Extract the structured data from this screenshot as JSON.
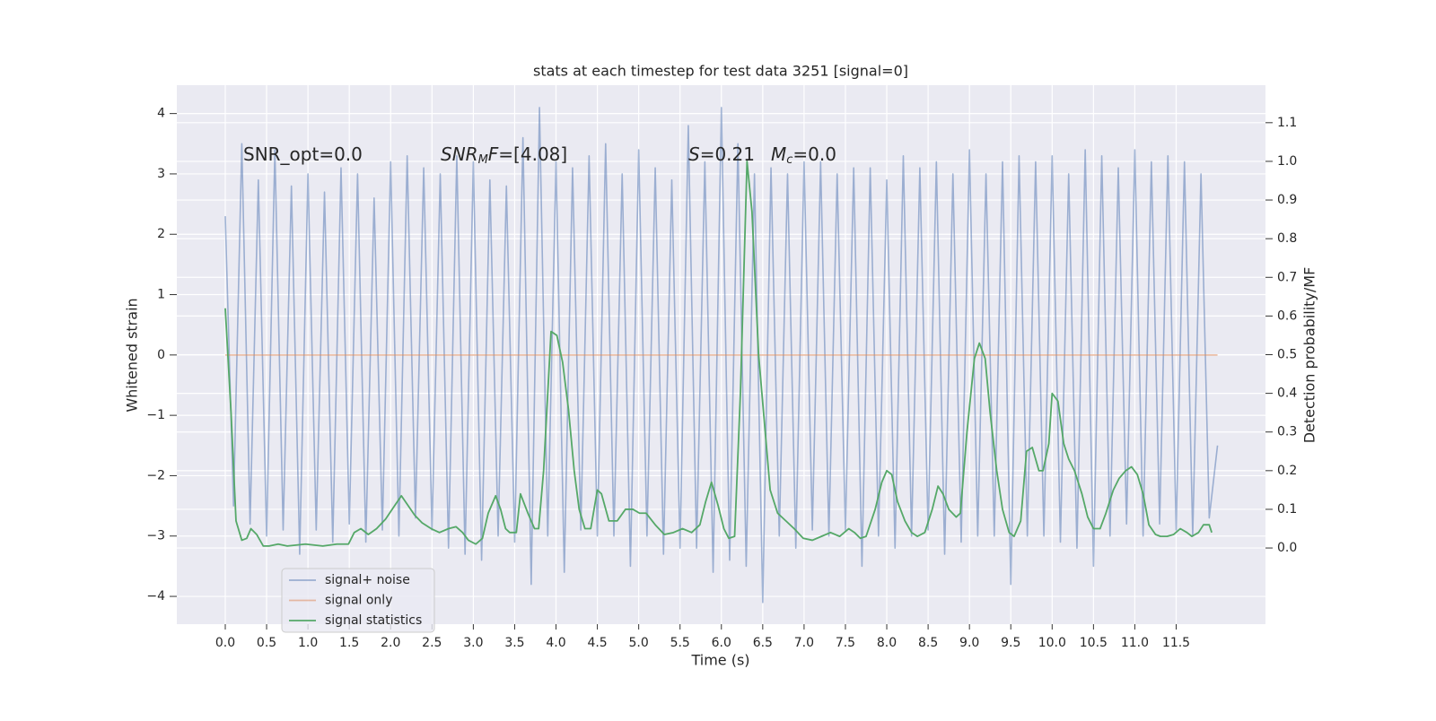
{
  "chart_data": {
    "type": "line",
    "title": "stats at each timestep for test data 3251 [signal=0]",
    "xlabel": "Time (s)",
    "ylabel": "Whitened strain",
    "y2label": "Detection probability/MF",
    "xlim": [
      -0.586,
      12.58
    ],
    "ylim": [
      -4.46,
      4.47
    ],
    "y2lim": [
      -0.197,
      1.197
    ],
    "xticks": [
      {
        "value": 0,
        "label": "0.0"
      },
      {
        "value": 0.5,
        "label": "0.5"
      },
      {
        "value": 1,
        "label": "1.0"
      },
      {
        "value": 1.5,
        "label": "1.5"
      },
      {
        "value": 2,
        "label": "2.0"
      },
      {
        "value": 2.5,
        "label": "2.5"
      },
      {
        "value": 3,
        "label": "3.0"
      },
      {
        "value": 3.5,
        "label": "3.5"
      },
      {
        "value": 4,
        "label": "4.0"
      },
      {
        "value": 4.5,
        "label": "4.5"
      },
      {
        "value": 5,
        "label": "5.0"
      },
      {
        "value": 5.5,
        "label": "5.5"
      },
      {
        "value": 6,
        "label": "6.0"
      },
      {
        "value": 6.5,
        "label": "6.5"
      },
      {
        "value": 7,
        "label": "7.0"
      },
      {
        "value": 7.5,
        "label": "7.5"
      },
      {
        "value": 8,
        "label": "8.0"
      },
      {
        "value": 8.5,
        "label": "8.5"
      },
      {
        "value": 9,
        "label": "9.0"
      },
      {
        "value": 9.5,
        "label": "9.5"
      },
      {
        "value": 10,
        "label": "10.0"
      },
      {
        "value": 10.5,
        "label": "10.5"
      },
      {
        "value": 11,
        "label": "11.0"
      },
      {
        "value": 11.5,
        "label": "11.5"
      }
    ],
    "yticks": [
      {
        "value": -4,
        "label": "−4"
      },
      {
        "value": -3,
        "label": "−3"
      },
      {
        "value": -2,
        "label": "−2"
      },
      {
        "value": -1,
        "label": "−1"
      },
      0,
      1,
      2,
      3,
      4
    ],
    "y2ticks": [
      {
        "value": 0,
        "label": "0.0"
      },
      {
        "value": 0.1,
        "label": "0.1"
      },
      {
        "value": 0.2,
        "label": "0.2"
      },
      {
        "value": 0.3,
        "label": "0.3"
      },
      {
        "value": 0.4,
        "label": "0.4"
      },
      {
        "value": 0.5,
        "label": "0.5"
      },
      {
        "value": 0.6,
        "label": "0.6"
      },
      {
        "value": 0.7,
        "label": "0.7"
      },
      {
        "value": 0.8,
        "label": "0.8"
      },
      {
        "value": 0.9,
        "label": "0.9"
      },
      {
        "value": 1,
        "label": "1.0"
      },
      {
        "value": 1.1,
        "label": "1.1"
      }
    ],
    "grid": true,
    "legend": "lower left",
    "annotations": [
      [
        {
          "text": "SNR_opt=0.0"
        }
      ],
      [
        {
          "text": "SNR",
          "math": true
        },
        {
          "text": "M",
          "math": true,
          "sub": true
        },
        {
          "text": "F",
          "math": true
        },
        {
          "text": "=[4.08]"
        }
      ],
      [
        {
          "text": "S",
          "math": true
        },
        {
          "text": "=0.21"
        }
      ],
      [
        {
          "text": "M",
          "math": true
        },
        {
          "text": "c",
          "math": true,
          "sub": true
        },
        {
          "text": "=0.0"
        }
      ]
    ],
    "series": [
      {
        "name": "signal+ noise",
        "color": "#4c72b0",
        "opacity": 0.5,
        "x": [
          0,
          0.1,
          0.2,
          0.3,
          0.4,
          0.5,
          0.6,
          0.7,
          0.8,
          0.9,
          1,
          1.1,
          1.2,
          1.3,
          1.4,
          1.5,
          1.6,
          1.7,
          1.8,
          1.9,
          2,
          2.1,
          2.2,
          2.3,
          2.4,
          2.5,
          2.6,
          2.7,
          2.8,
          2.9,
          3,
          3.1,
          3.2,
          3.3,
          3.4,
          3.5,
          3.6,
          3.7,
          3.8,
          3.9,
          4,
          4.1,
          4.2,
          4.3,
          4.4,
          4.5,
          4.6,
          4.7,
          4.8,
          4.9,
          5,
          5.1,
          5.2,
          5.3,
          5.4,
          5.5,
          5.6,
          5.7,
          5.8,
          5.9,
          6,
          6.1,
          6.2,
          6.3,
          6.4,
          6.5,
          6.6,
          6.7,
          6.8,
          6.9,
          7,
          7.1,
          7.2,
          7.3,
          7.4,
          7.5,
          7.6,
          7.7,
          7.8,
          7.9,
          8,
          8.1,
          8.2,
          8.3,
          8.4,
          8.5,
          8.6,
          8.7,
          8.8,
          8.9,
          9,
          9.1,
          9.2,
          9.3,
          9.4,
          9.5,
          9.6,
          9.7,
          9.8,
          9.9,
          10,
          10.1,
          10.2,
          10.3,
          10.4,
          10.5,
          10.6,
          10.7,
          10.8,
          10.9,
          11,
          11.1,
          11.2,
          11.3,
          11.4,
          11.5,
          11.6,
          11.7,
          11.8,
          11.9,
          12
        ],
        "values": [
          2.3,
          -2.5,
          3.5,
          -2.8,
          2.9,
          -3.0,
          3.4,
          -2.9,
          2.8,
          -3.3,
          3.0,
          -2.9,
          2.7,
          -3.1,
          3.1,
          -2.8,
          3.0,
          -3.1,
          2.6,
          -2.9,
          3.2,
          -3.0,
          3.3,
          -2.7,
          3.1,
          -2.9,
          3.0,
          -3.2,
          3.3,
          -3.3,
          3.2,
          -3.4,
          2.9,
          -3.0,
          2.8,
          -3.1,
          3.6,
          -3.8,
          4.1,
          -3.0,
          3.2,
          -3.6,
          3.1,
          -2.9,
          3.3,
          -3.0,
          3.5,
          -3.0,
          3.0,
          -3.5,
          3.4,
          -3.0,
          3.1,
          -3.3,
          2.9,
          -3.2,
          3.8,
          -3.2,
          3.2,
          -3.6,
          4.1,
          -3.4,
          3.5,
          -3.5,
          3.0,
          -4.1,
          3.1,
          -3.0,
          3.0,
          -3.2,
          3.2,
          -2.9,
          3.2,
          -3.0,
          3.0,
          -2.9,
          3.1,
          -3.5,
          3.1,
          -3.0,
          2.9,
          -3.2,
          3.3,
          -3.0,
          3.1,
          -2.9,
          3.2,
          -3.3,
          3.0,
          -3.1,
          3.4,
          -3.0,
          3.0,
          -3.0,
          3.2,
          -3.8,
          3.3,
          -3.0,
          3.2,
          -3.0,
          3.3,
          -3.1,
          3.0,
          -3.2,
          3.4,
          -3.5,
          3.3,
          -3.0,
          3.1,
          -2.8,
          3.4,
          -3.0,
          3.2,
          -2.8,
          3.3,
          -2.9,
          3.2,
          -3.0,
          3.0,
          -2.7,
          -1.5
        ]
      },
      {
        "name": "signal only",
        "color": "#dd8452",
        "opacity": 0.5,
        "x": [
          0,
          12
        ],
        "values": [
          0,
          0
        ]
      },
      {
        "name": "signal statistics",
        "color": "#55a868",
        "opacity": 1,
        "axis": "y2",
        "x": [
          0,
          0.07,
          0.13,
          0.2,
          0.26,
          0.31,
          0.38,
          0.46,
          0.53,
          0.64,
          0.75,
          0.97,
          1.18,
          1.35,
          1.49,
          1.56,
          1.64,
          1.73,
          1.83,
          1.94,
          2.05,
          2.13,
          2.21,
          2.29,
          2.38,
          2.49,
          2.59,
          2.7,
          2.79,
          2.87,
          2.94,
          3.03,
          3.11,
          3.18,
          3.27,
          3.33,
          3.39,
          3.44,
          3.52,
          3.57,
          3.66,
          3.74,
          3.79,
          3.85,
          3.94,
          4.01,
          4.08,
          4.15,
          4.22,
          4.28,
          4.35,
          4.42,
          4.5,
          4.55,
          4.64,
          4.74,
          4.84,
          4.93,
          5.01,
          5.09,
          5.2,
          5.31,
          5.42,
          5.53,
          5.64,
          5.74,
          5.81,
          5.88,
          5.96,
          6.03,
          6.09,
          6.16,
          6.23,
          6.31,
          6.37,
          6.45,
          6.53,
          6.59,
          6.68,
          6.78,
          6.88,
          6.99,
          7.1,
          7.21,
          7.32,
          7.43,
          7.54,
          7.61,
          7.68,
          7.75,
          7.86,
          7.94,
          8,
          8.06,
          8.13,
          8.22,
          8.3,
          8.37,
          8.46,
          8.55,
          8.62,
          8.68,
          8.75,
          8.84,
          8.89,
          8.97,
          9.06,
          9.12,
          9.19,
          9.25,
          9.33,
          9.4,
          9.48,
          9.54,
          9.62,
          9.69,
          9.76,
          9.84,
          9.89,
          9.96,
          10,
          10.07,
          10.14,
          10.2,
          10.27,
          10.36,
          10.43,
          10.5,
          10.58,
          10.65,
          10.74,
          10.81,
          10.89,
          10.96,
          11.03,
          11.1,
          11.17,
          11.25,
          11.31,
          11.39,
          11.47,
          11.55,
          11.63,
          11.69,
          11.77,
          11.83,
          11.9,
          11.93
        ],
        "values": [
          0.62,
          0.35,
          0.07,
          0.02,
          0.025,
          0.05,
          0.035,
          0.005,
          0.005,
          0.01,
          0.005,
          0.01,
          0.005,
          0.01,
          0.01,
          0.04,
          0.05,
          0.035,
          0.05,
          0.075,
          0.11,
          0.135,
          0.11,
          0.085,
          0.065,
          0.05,
          0.04,
          0.05,
          0.055,
          0.04,
          0.02,
          0.01,
          0.025,
          0.09,
          0.135,
          0.1,
          0.05,
          0.04,
          0.04,
          0.14,
          0.09,
          0.05,
          0.05,
          0.2,
          0.56,
          0.55,
          0.48,
          0.36,
          0.2,
          0.1,
          0.05,
          0.05,
          0.15,
          0.14,
          0.07,
          0.07,
          0.1,
          0.1,
          0.09,
          0.09,
          0.06,
          0.035,
          0.04,
          0.05,
          0.04,
          0.06,
          0.12,
          0.17,
          0.11,
          0.05,
          0.025,
          0.03,
          0.4,
          1.0,
          0.87,
          0.5,
          0.3,
          0.15,
          0.09,
          0.07,
          0.05,
          0.025,
          0.02,
          0.03,
          0.04,
          0.03,
          0.05,
          0.04,
          0.025,
          0.03,
          0.1,
          0.17,
          0.2,
          0.19,
          0.12,
          0.07,
          0.04,
          0.03,
          0.04,
          0.1,
          0.16,
          0.14,
          0.1,
          0.08,
          0.09,
          0.3,
          0.49,
          0.53,
          0.49,
          0.35,
          0.2,
          0.1,
          0.04,
          0.03,
          0.07,
          0.25,
          0.26,
          0.2,
          0.2,
          0.27,
          0.4,
          0.38,
          0.27,
          0.23,
          0.2,
          0.14,
          0.08,
          0.05,
          0.05,
          0.09,
          0.15,
          0.18,
          0.2,
          0.21,
          0.19,
          0.14,
          0.06,
          0.035,
          0.03,
          0.03,
          0.035,
          0.05,
          0.04,
          0.03,
          0.04,
          0.06,
          0.06,
          0.04
        ]
      }
    ]
  }
}
